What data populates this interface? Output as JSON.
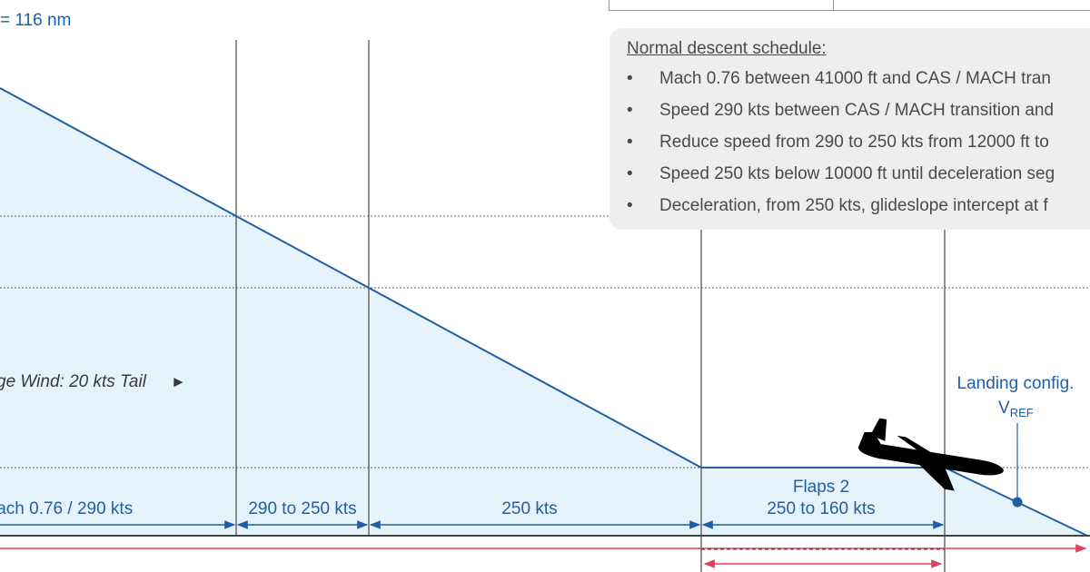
{
  "header": {
    "distance_label": "= 116 nm"
  },
  "wind": {
    "label": "ge Wind: 20 kts Tail",
    "arrow": "►"
  },
  "segments": [
    {
      "label": "lach 0.76 / 290 kts"
    },
    {
      "label": "290 to 250 kts"
    },
    {
      "label": "250 kts"
    },
    {
      "label_line1": "Flaps 2",
      "label_line2": "250 to 160 kts"
    }
  ],
  "landing": {
    "line1": "Landing config.",
    "vref_main": "V",
    "vref_sub": "REF"
  },
  "schedule": {
    "title": "Normal descent schedule:",
    "items": [
      "Mach 0.76 between 41000 ft and CAS / MACH tran",
      "Speed 290 kts between CAS / MACH transition and",
      "Reduce speed from 290 to 250 kts from 12000 ft to",
      "Speed 250 kts below 10000 ft until deceleration seg",
      "Deceleration, from 250 kts, glideslope intercept at f"
    ]
  },
  "colors": {
    "profile_line": "#1f5fa6",
    "profile_fill": "#e6f3fb",
    "distance_arrow": "#e0405a",
    "grid": "#555555",
    "aircraft": "#000000"
  },
  "icons": {
    "aircraft": "aircraft-silhouette-icon",
    "marker": "vref-point-icon"
  }
}
